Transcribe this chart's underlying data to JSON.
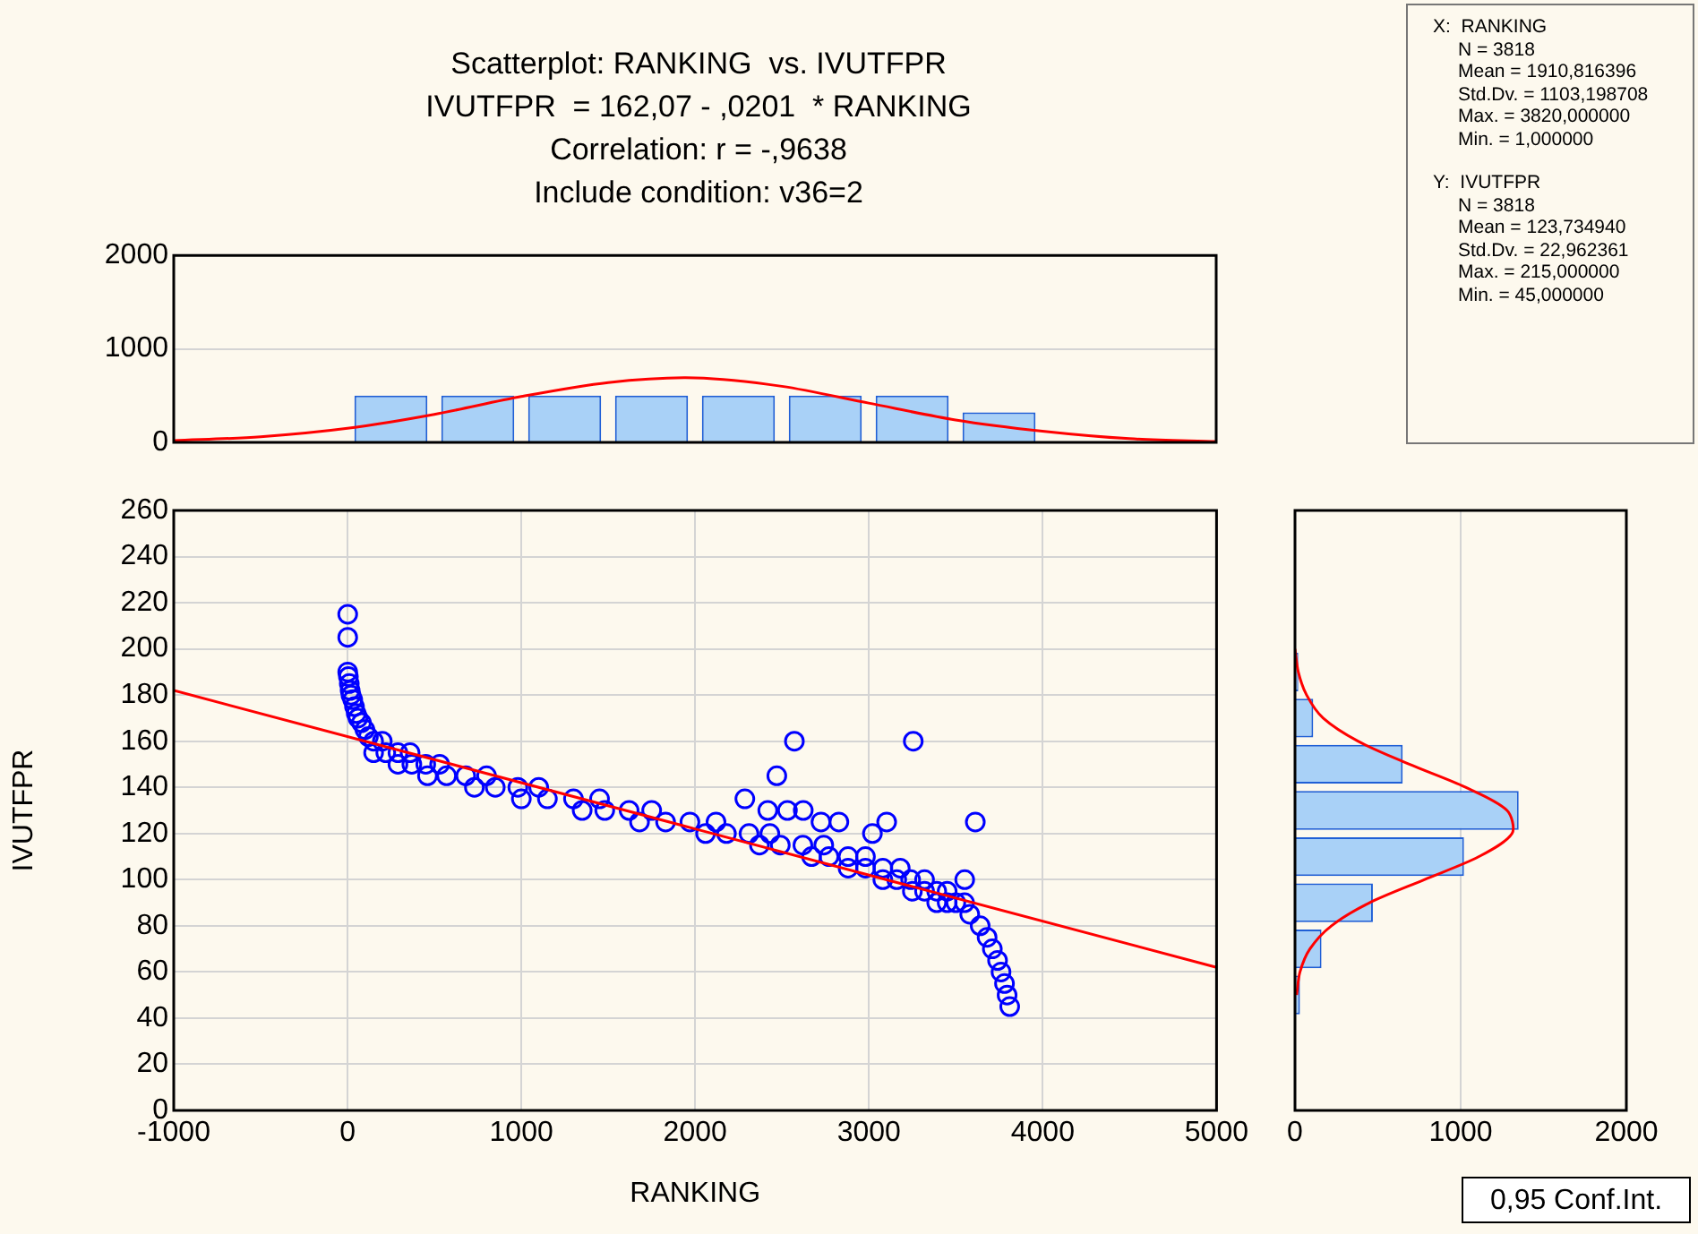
{
  "chart_data": [
    {
      "type": "histogram",
      "title": "Scatterplot: RANKING  vs. IVUTFPR",
      "subtitle": "IVUTFPR  = 162,07 - ,0201  * RANKING",
      "annotations": [
        "Correlation: r = -,9638",
        "Include condition: v36=2"
      ],
      "xlim": [
        -1000,
        5000
      ],
      "xticks": [
        -1000,
        0,
        1000,
        2000,
        3000,
        4000,
        5000
      ],
      "ylim": [
        0,
        2000
      ],
      "yticks": [
        0,
        1000,
        2000
      ],
      "tick_labels": "y",
      "grid": "y",
      "series": [
        {
          "type": "histogram",
          "color": "#a9d1f7",
          "bins": [
            0,
            500,
            1000,
            1500,
            2000,
            2500,
            3000,
            3500,
            4000
          ],
          "values": [
            500,
            500,
            500,
            500,
            500,
            500,
            500,
            320
          ]
        },
        {
          "type": "line",
          "color": "#ff0000",
          "x": [
            -1000,
            -500,
            0,
            500,
            1000,
            1500,
            2000,
            2500,
            3000,
            3500,
            4000,
            4500,
            5000
          ],
          "values": [
            20,
            60,
            150,
            300,
            490,
            640,
            690,
            600,
            420,
            240,
            120,
            40,
            10
          ]
        }
      ]
    },
    {
      "type": "scatter",
      "xlabel": "RANKING",
      "ylabel": "IVUTFPR",
      "xlim": [
        -1000,
        5000
      ],
      "xticks": [
        -1000,
        0,
        1000,
        2000,
        3000,
        4000,
        5000
      ],
      "ylim": [
        0,
        260
      ],
      "yticks": [
        0,
        20,
        40,
        60,
        80,
        100,
        120,
        140,
        160,
        180,
        200,
        220,
        240,
        260
      ],
      "grid": true,
      "annotations": [
        "0,95 Conf.Int."
      ],
      "series": [
        {
          "type": "scatter",
          "color": "#0000ff",
          "marker": "circle",
          "x": [
            1,
            1,
            1,
            5,
            10,
            15,
            20,
            30,
            40,
            50,
            60,
            80,
            100,
            120,
            150,
            200,
            150,
            220,
            290,
            360,
            290,
            370,
            450,
            530,
            460,
            570,
            680,
            800,
            730,
            850,
            980,
            1100,
            1000,
            1150,
            1300,
            1450,
            1350,
            1480,
            1620,
            1750,
            1680,
            1830,
            1970,
            2120,
            2060,
            2180,
            2310,
            2430,
            2370,
            2490,
            2620,
            2740,
            2670,
            2770,
            2880,
            2980,
            2880,
            2980,
            3080,
            3180,
            3080,
            3160,
            3240,
            3320,
            3250,
            3320,
            3390,
            3450,
            3390,
            3450,
            3500,
            3550,
            3580,
            3640,
            3680,
            3710,
            3740,
            3760,
            3780,
            3795,
            3810,
            2286,
            2418,
            2470,
            2571,
            2531,
            2622,
            2724,
            2827,
            3020,
            3102,
            3255,
            3612,
            3551
          ],
          "values": [
            215,
            205,
            190,
            188,
            185,
            182,
            180,
            178,
            175,
            172,
            170,
            168,
            165,
            162,
            160,
            160,
            155,
            155,
            155,
            155,
            150,
            150,
            150,
            150,
            145,
            145,
            145,
            145,
            140,
            140,
            140,
            140,
            135,
            135,
            135,
            135,
            130,
            130,
            130,
            130,
            125,
            125,
            125,
            125,
            120,
            120,
            120,
            120,
            115,
            115,
            115,
            115,
            110,
            110,
            110,
            110,
            105,
            105,
            105,
            105,
            100,
            100,
            100,
            100,
            95,
            95,
            95,
            95,
            90,
            90,
            90,
            90,
            85,
            80,
            75,
            70,
            65,
            60,
            55,
            50,
            45,
            135,
            130,
            145,
            160,
            130,
            130,
            125,
            125,
            120,
            125,
            160,
            125,
            100
          ]
        },
        {
          "type": "line",
          "color": "#ff0000",
          "x": [
            -1000,
            5000
          ],
          "values": [
            182,
            62
          ]
        }
      ]
    },
    {
      "type": "histogram",
      "orientation": "horizontal",
      "xlim": [
        0,
        2000
      ],
      "xticks": [
        0,
        1000,
        2000
      ],
      "ylim": [
        0,
        260
      ],
      "yticks": [
        0,
        20,
        40,
        60,
        80,
        100,
        120,
        140,
        160,
        180,
        200,
        220,
        240,
        260
      ],
      "tick_labels": "x",
      "grid": "x",
      "series": [
        {
          "type": "histogram",
          "color": "#a9d1f7",
          "bins": [
            40,
            60,
            80,
            100,
            120,
            140,
            160,
            180,
            200,
            220
          ],
          "values": [
            30,
            160,
            470,
            1020,
            1350,
            650,
            110,
            20,
            null
          ]
        },
        {
          "type": "line",
          "color": "#ff0000",
          "x": [
            50,
            60,
            70,
            80,
            90,
            100,
            110,
            120,
            130,
            140,
            150,
            160,
            170,
            180,
            190,
            200
          ],
          "values": [
            10,
            30,
            90,
            220,
            450,
            780,
            1110,
            1310,
            1280,
            1030,
            690,
            380,
            170,
            70,
            20,
            0
          ]
        }
      ]
    },
    {
      "type": "other",
      "annotations": [
        "X:  RANKING",
        "N = 3818",
        "Mean = 1910,816396",
        "Std.Dv. = 1103,198708",
        "Max. = 3820,000000",
        "Min. = 1,000000",
        "Y:  IVUTFPR",
        "N = 3818",
        "Mean = 123,734940",
        "Std.Dv. = 22,962361",
        "Max. = 215,000000",
        "Min. = 45,000000"
      ]
    }
  ]
}
